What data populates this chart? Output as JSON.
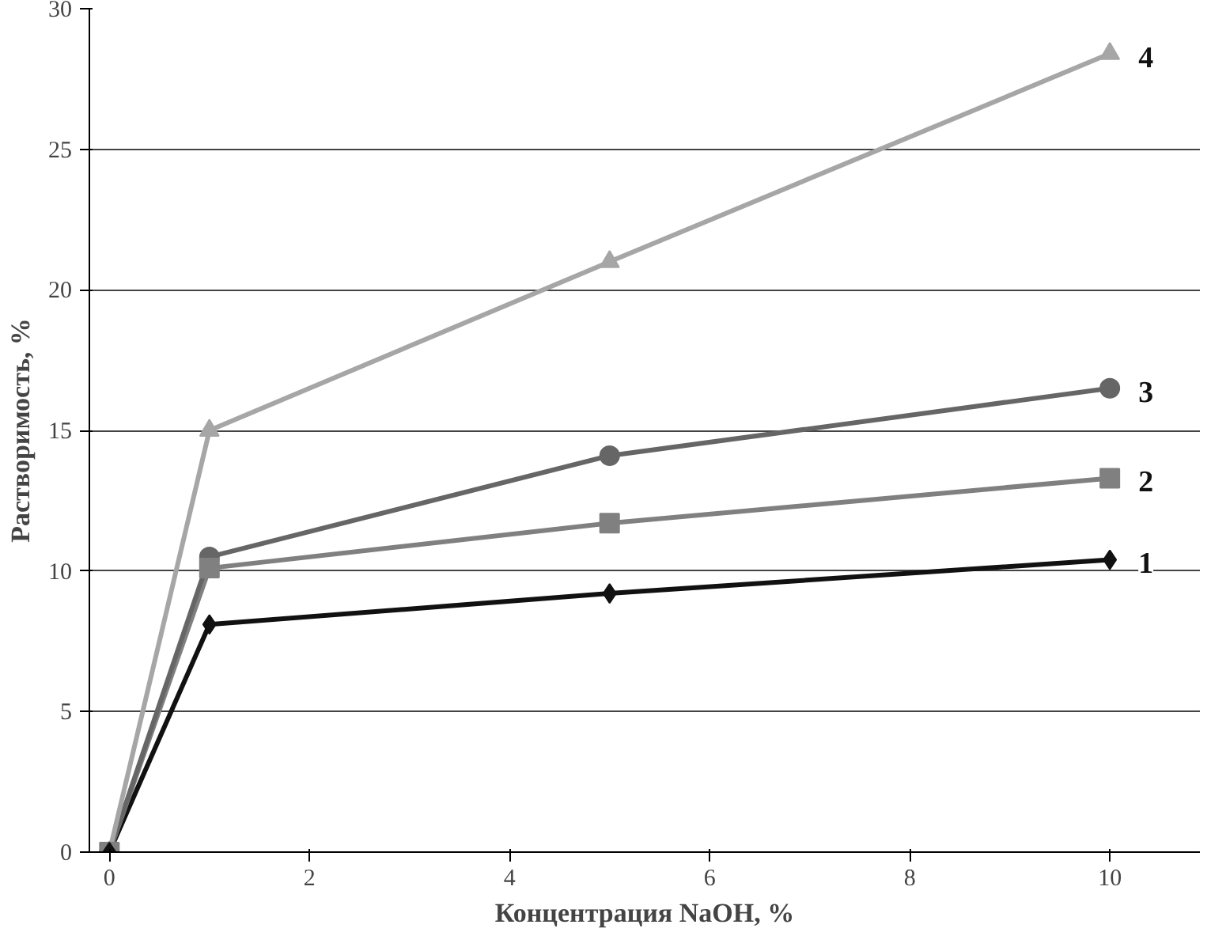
{
  "chart_data": {
    "type": "line",
    "xlabel": "Концентрация NaOH, %",
    "ylabel": "Растворимость, %",
    "x": [
      0,
      1,
      5,
      10
    ],
    "series": [
      {
        "name": "1",
        "color": "#111111",
        "marker": "diamond",
        "values": [
          0,
          8.1,
          9.2,
          10.4
        ]
      },
      {
        "name": "2",
        "color": "#808080",
        "marker": "square",
        "values": [
          0,
          10.1,
          11.7,
          13.3
        ]
      },
      {
        "name": "3",
        "color": "#666666",
        "marker": "circle",
        "values": [
          0,
          10.5,
          14.1,
          16.5
        ]
      },
      {
        "name": "4",
        "color": "#a6a6a6",
        "marker": "triangle",
        "values": [
          0,
          15,
          21,
          28.4
        ]
      }
    ],
    "xlim": [
      -0.2,
      10.9
    ],
    "ylim": [
      0,
      30
    ],
    "xticks": [
      0,
      2,
      4,
      6,
      8,
      10
    ],
    "yticks": [
      0,
      5,
      10,
      15,
      20,
      25,
      30
    ],
    "grid": "y",
    "line_style": "solid"
  }
}
